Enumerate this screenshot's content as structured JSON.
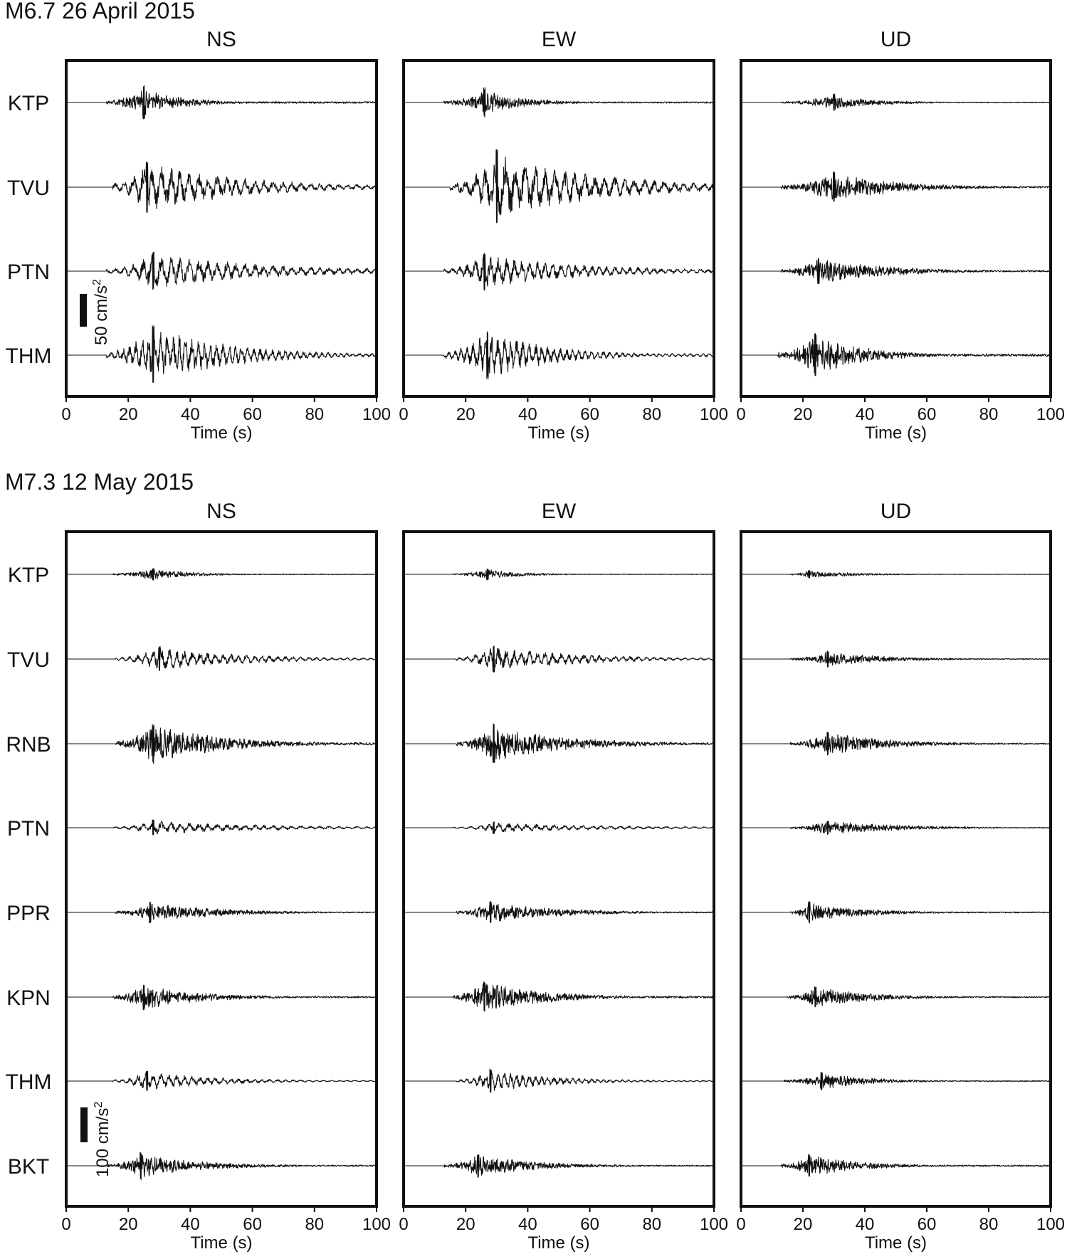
{
  "chart_data": [
    {
      "type": "line",
      "title": "M6.7 26 April 2015",
      "panels": [
        "NS",
        "EW",
        "UD"
      ],
      "stations": [
        "KTP",
        "TVU",
        "PTN",
        "THM"
      ],
      "xlabel": "Time (s)",
      "xlim": [
        0,
        100
      ],
      "xticks": [
        0,
        20,
        40,
        60,
        80,
        100
      ],
      "scale_bar": {
        "value": 50,
        "label": "50 cm/s",
        "superscript": "2"
      },
      "traces": {
        "NS": [
          {
            "station": "KTP",
            "onset": 13,
            "peak_time": 25,
            "peak_amp": 32,
            "decay": 12,
            "period": 0.8
          },
          {
            "station": "TVU",
            "onset": 15,
            "peak_time": 26,
            "peak_amp": 52,
            "decay": 30,
            "period": 3.0
          },
          {
            "station": "PTN",
            "onset": 13,
            "peak_time": 28,
            "peak_amp": 38,
            "decay": 40,
            "period": 3.0
          },
          {
            "station": "THM",
            "onset": 13,
            "peak_time": 28,
            "peak_amp": 55,
            "decay": 25,
            "period": 2.0
          }
        ],
        "EW": [
          {
            "station": "KTP",
            "onset": 13,
            "peak_time": 26,
            "peak_amp": 28,
            "decay": 13,
            "period": 1.0
          },
          {
            "station": "TVU",
            "onset": 15,
            "peak_time": 30,
            "peak_amp": 72,
            "decay": 32,
            "period": 3.2
          },
          {
            "station": "PTN",
            "onset": 13,
            "peak_time": 26,
            "peak_amp": 36,
            "decay": 35,
            "period": 2.5
          },
          {
            "station": "THM",
            "onset": 13,
            "peak_time": 27,
            "peak_amp": 45,
            "decay": 20,
            "period": 2.0
          }
        ],
        "UD": [
          {
            "station": "KTP",
            "onset": 13,
            "peak_time": 30,
            "peak_amp": 16,
            "decay": 14,
            "period": 0.6
          },
          {
            "station": "TVU",
            "onset": 13,
            "peak_time": 30,
            "peak_amp": 30,
            "decay": 20,
            "period": 1.0
          },
          {
            "station": "PTN",
            "onset": 13,
            "peak_time": 25,
            "peak_amp": 26,
            "decay": 22,
            "period": 1.2
          },
          {
            "station": "THM",
            "onset": 12,
            "peak_time": 24,
            "peak_amp": 42,
            "decay": 16,
            "period": 1.0
          }
        ]
      }
    },
    {
      "type": "line",
      "title": "M7.3 12 May 2015",
      "panels": [
        "NS",
        "EW",
        "UD"
      ],
      "stations": [
        "KTP",
        "TVU",
        "RNB",
        "PTN",
        "PPR",
        "KPN",
        "THM",
        "BKT"
      ],
      "xlabel": "Time (s)",
      "xlim": [
        0,
        100
      ],
      "xticks": [
        0,
        20,
        40,
        60,
        80,
        100
      ],
      "scale_bar": {
        "value": 100,
        "label": "100 cm/s",
        "superscript": "2"
      },
      "traces": {
        "NS": [
          {
            "station": "KTP",
            "onset": 15,
            "peak_time": 28,
            "peak_amp": 22,
            "decay": 12,
            "period": 0.8
          },
          {
            "station": "TVU",
            "onset": 16,
            "peak_time": 30,
            "peak_amp": 45,
            "decay": 28,
            "period": 2.5
          },
          {
            "station": "RNB",
            "onset": 16,
            "peak_time": 28,
            "peak_amp": 70,
            "decay": 22,
            "period": 1.5
          },
          {
            "station": "PTN",
            "onset": 15,
            "peak_time": 28,
            "peak_amp": 28,
            "decay": 40,
            "period": 3.0
          },
          {
            "station": "PPR",
            "onset": 16,
            "peak_time": 27,
            "peak_amp": 38,
            "decay": 22,
            "period": 1.8
          },
          {
            "station": "KPN",
            "onset": 15,
            "peak_time": 25,
            "peak_amp": 45,
            "decay": 18,
            "period": 1.0
          },
          {
            "station": "THM",
            "onset": 15,
            "peak_time": 26,
            "peak_amp": 35,
            "decay": 24,
            "period": 2.5
          },
          {
            "station": "BKT",
            "onset": 13,
            "peak_time": 24,
            "peak_amp": 48,
            "decay": 20,
            "period": 1.5
          }
        ],
        "EW": [
          {
            "station": "KTP",
            "onset": 16,
            "peak_time": 27,
            "peak_amp": 20,
            "decay": 12,
            "period": 0.8
          },
          {
            "station": "TVU",
            "onset": 17,
            "peak_time": 29,
            "peak_amp": 48,
            "decay": 28,
            "period": 2.5
          },
          {
            "station": "RNB",
            "onset": 17,
            "peak_time": 29,
            "peak_amp": 70,
            "decay": 24,
            "period": 1.5
          },
          {
            "station": "PTN",
            "onset": 16,
            "peak_time": 29,
            "peak_amp": 22,
            "decay": 40,
            "period": 3.0
          },
          {
            "station": "PPR",
            "onset": 17,
            "peak_time": 28,
            "peak_amp": 40,
            "decay": 22,
            "period": 1.5
          },
          {
            "station": "KPN",
            "onset": 16,
            "peak_time": 26,
            "peak_amp": 55,
            "decay": 18,
            "period": 1.2
          },
          {
            "station": "THM",
            "onset": 17,
            "peak_time": 28,
            "peak_amp": 42,
            "decay": 22,
            "period": 2.0
          },
          {
            "station": "BKT",
            "onset": 13,
            "peak_time": 24,
            "peak_amp": 42,
            "decay": 20,
            "period": 1.5
          }
        ],
        "UD": [
          {
            "station": "KTP",
            "onset": 16,
            "peak_time": 22,
            "peak_amp": 14,
            "decay": 16,
            "period": 0.6
          },
          {
            "station": "TVU",
            "onset": 16,
            "peak_time": 28,
            "peak_amp": 28,
            "decay": 20,
            "period": 1.0
          },
          {
            "station": "RNB",
            "onset": 16,
            "peak_time": 28,
            "peak_amp": 40,
            "decay": 20,
            "period": 1.0
          },
          {
            "station": "PTN",
            "onset": 16,
            "peak_time": 28,
            "peak_amp": 24,
            "decay": 22,
            "period": 1.0
          },
          {
            "station": "PPR",
            "onset": 16,
            "peak_time": 22,
            "peak_amp": 38,
            "decay": 18,
            "period": 0.8
          },
          {
            "station": "KPN",
            "onset": 15,
            "peak_time": 24,
            "peak_amp": 38,
            "decay": 18,
            "period": 0.8
          },
          {
            "station": "THM",
            "onset": 14,
            "peak_time": 26,
            "peak_amp": 32,
            "decay": 16,
            "period": 1.0
          },
          {
            "station": "BKT",
            "onset": 13,
            "peak_time": 22,
            "peak_amp": 40,
            "decay": 16,
            "period": 0.8
          }
        ]
      }
    }
  ]
}
